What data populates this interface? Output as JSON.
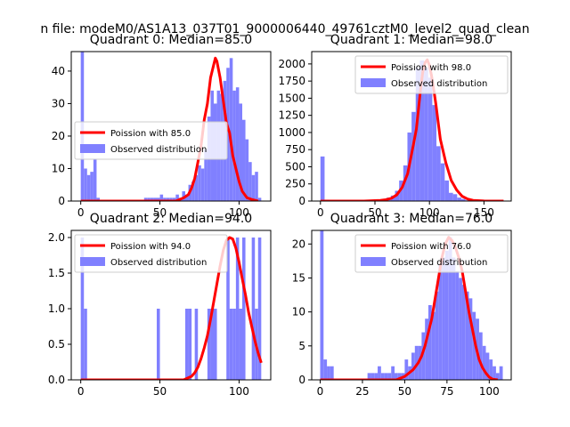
{
  "figure": {
    "suptitle": "n file: modeM0/AS1A13_037T01_9000006440_49761cztM0_level2_quad_clean"
  },
  "colors": {
    "hist": "#8080ff",
    "poisson": "#ff0000",
    "axes": "#000000",
    "background": "#ffffff"
  },
  "chart_data": [
    {
      "type": "bar",
      "title": "Quadrant 0: Median=85.0",
      "xlim": [
        -6,
        120
      ],
      "ylim": [
        0,
        46
      ],
      "xticks": [
        0,
        50,
        100
      ],
      "yticks": [
        0,
        10,
        20,
        30,
        40
      ],
      "legend_position": "center-left",
      "bin_width": 2,
      "bins_x": [
        0,
        2,
        4,
        6,
        8,
        10,
        12,
        14,
        16,
        18,
        20,
        22,
        24,
        26,
        28,
        30,
        32,
        34,
        36,
        38,
        40,
        42,
        44,
        46,
        48,
        50,
        52,
        54,
        56,
        58,
        60,
        62,
        64,
        66,
        68,
        70,
        72,
        74,
        76,
        78,
        80,
        82,
        84,
        86,
        88,
        90,
        92,
        94,
        96,
        98,
        100,
        102,
        104,
        106,
        108,
        110,
        112
      ],
      "hist_values": [
        46,
        10,
        8,
        9,
        13,
        1,
        0,
        0,
        0,
        0,
        0,
        0,
        0,
        0,
        0,
        0,
        0,
        0,
        0,
        0,
        1,
        1,
        1,
        1,
        1,
        2,
        1,
        1,
        1,
        1,
        2,
        1,
        3,
        2,
        5,
        6,
        8,
        11,
        10,
        16,
        26,
        34,
        30,
        34,
        33,
        37,
        41,
        44,
        34,
        35,
        30,
        25,
        19,
        12,
        8,
        9,
        1
      ],
      "series": [
        {
          "name": "Poission with 85.0",
          "type": "line",
          "x": [
            0,
            5,
            10,
            15,
            20,
            25,
            30,
            35,
            40,
            45,
            50,
            55,
            60,
            65,
            68,
            70,
            72,
            74,
            76,
            78,
            80,
            82,
            84,
            85,
            86,
            88,
            90,
            92,
            94,
            96,
            98,
            100,
            102,
            105,
            108,
            112
          ],
          "y": [
            0,
            0,
            0,
            0,
            0,
            0,
            0,
            0,
            0,
            0,
            0,
            0,
            0,
            1,
            2,
            4,
            7,
            12,
            17,
            25,
            30,
            38,
            42,
            44,
            43,
            38,
            31,
            24,
            21,
            14,
            10,
            6,
            3,
            1,
            0.5,
            0
          ]
        },
        {
          "name": "Observed distribution",
          "type": "hist"
        }
      ]
    },
    {
      "type": "bar",
      "title": "Quadrant 1: Median=98.0",
      "xlim": [
        -8,
        175
      ],
      "ylim": [
        0,
        2180
      ],
      "xticks": [
        0,
        50,
        100,
        150
      ],
      "yticks": [
        0,
        250,
        500,
        750,
        1000,
        1250,
        1500,
        1750,
        2000
      ],
      "legend_position": "upper-right",
      "bin_width": 3.8,
      "bins_x": [
        0,
        3.8,
        7.6,
        11.4,
        15.2,
        19,
        22.8,
        26.6,
        30.4,
        34.2,
        38,
        41.8,
        45.6,
        49.4,
        53.2,
        57,
        60.8,
        64.6,
        68.4,
        72.2,
        76,
        79.8,
        83.6,
        87.4,
        91.2,
        95,
        98.8,
        102.6,
        106.4,
        110.2,
        114,
        117.8,
        121.6,
        125.4,
        129.2,
        133,
        136.8,
        140.6,
        144.4,
        148.2,
        152,
        155.8,
        159.6,
        163.4
      ],
      "hist_values": [
        650,
        20,
        15,
        10,
        5,
        5,
        5,
        5,
        5,
        5,
        5,
        5,
        8,
        10,
        20,
        30,
        50,
        80,
        150,
        300,
        520,
        1000,
        1300,
        1950,
        2050,
        1950,
        1800,
        1400,
        800,
        550,
        300,
        120,
        100,
        50,
        30,
        10,
        5,
        2,
        1,
        1,
        1,
        1,
        1,
        1
      ],
      "series": [
        {
          "name": "Poission with 98.0",
          "type": "line",
          "x": [
            0,
            20,
            40,
            55,
            60,
            65,
            70,
            75,
            80,
            85,
            88,
            90,
            92,
            94,
            96,
            98,
            100,
            102,
            104,
            106,
            108,
            110,
            115,
            120,
            125,
            130,
            135,
            140,
            150,
            160,
            168
          ],
          "y": [
            0,
            0,
            0,
            10,
            20,
            40,
            90,
            200,
            400,
            800,
            1050,
            1350,
            1650,
            1900,
            2020,
            2060,
            1980,
            1820,
            1620,
            1400,
            1150,
            900,
            560,
            300,
            160,
            70,
            30,
            10,
            2,
            0,
            0
          ]
        },
        {
          "name": "Observed distribution",
          "type": "hist"
        }
      ]
    },
    {
      "type": "bar",
      "title": "Quadrant 2: Median=94.0",
      "xlim": [
        -6,
        120
      ],
      "ylim": [
        0,
        2.1
      ],
      "xticks": [
        0,
        50,
        100
      ],
      "yticks": [
        0.0,
        0.5,
        1.0,
        1.5,
        2.0
      ],
      "legend_position": "upper-left",
      "bin_width": 2,
      "bins_x": [
        0,
        2,
        48,
        66,
        68,
        70,
        72,
        74,
        76,
        78,
        80,
        82,
        84,
        86,
        88,
        90,
        92,
        94,
        96,
        98,
        100,
        102,
        104,
        106,
        108,
        110,
        112
      ],
      "hist_values": [
        2,
        1,
        1,
        1,
        1,
        0,
        1,
        0,
        0,
        0,
        1,
        1,
        1,
        0,
        0,
        0,
        2,
        1,
        1,
        2,
        1,
        2,
        0,
        0,
        2,
        1,
        2
      ],
      "series": [
        {
          "name": "Poission with 94.0",
          "type": "line",
          "x": [
            0,
            20,
            40,
            60,
            65,
            70,
            72,
            74,
            76,
            78,
            80,
            82,
            84,
            86,
            88,
            90,
            92,
            94,
            96,
            98,
            100,
            102,
            104,
            106,
            108,
            110,
            112,
            114
          ],
          "y": [
            0,
            0,
            0,
            0,
            0,
            0.05,
            0.1,
            0.18,
            0.3,
            0.45,
            0.62,
            0.85,
            1.1,
            1.35,
            1.6,
            1.82,
            1.96,
            2.0,
            1.98,
            1.85,
            1.65,
            1.42,
            1.2,
            0.95,
            0.75,
            0.55,
            0.38,
            0.24
          ]
        },
        {
          "name": "Observed distribution",
          "type": "hist"
        }
      ]
    },
    {
      "type": "bar",
      "title": "Quadrant 3: Median=76.0",
      "xlim": [
        -5,
        113
      ],
      "ylim": [
        0,
        22
      ],
      "xticks": [
        0,
        25,
        50,
        75,
        100
      ],
      "yticks": [
        0,
        5,
        10,
        15,
        20
      ],
      "legend_position": "upper-right",
      "bin_width": 2,
      "bins_x": [
        0,
        2,
        4,
        6,
        28,
        30,
        32,
        34,
        36,
        38,
        40,
        42,
        44,
        46,
        48,
        50,
        52,
        54,
        56,
        58,
        60,
        62,
        64,
        66,
        68,
        70,
        72,
        74,
        76,
        78,
        80,
        82,
        84,
        86,
        88,
        90,
        92,
        94,
        96,
        98,
        100,
        102,
        104,
        106
      ],
      "hist_values": [
        22,
        3,
        2,
        2,
        1,
        1,
        1,
        2,
        1,
        1,
        1,
        2,
        1,
        1,
        1,
        3,
        2,
        4,
        5,
        5,
        7,
        9,
        11,
        10,
        13,
        17,
        18,
        19,
        21,
        18,
        16,
        15,
        14,
        13,
        12,
        10,
        9,
        7,
        5,
        4,
        3,
        2,
        1,
        2
      ],
      "series": [
        {
          "name": "Poission with 76.0",
          "type": "line",
          "x": [
            0,
            20,
            40,
            45,
            50,
            55,
            58,
            60,
            62,
            64,
            66,
            68,
            70,
            72,
            74,
            76,
            78,
            80,
            82,
            84,
            86,
            88,
            90,
            92,
            94,
            96,
            98,
            100,
            102,
            105
          ],
          "y": [
            0,
            0,
            0,
            0,
            0.5,
            1.5,
            2.5,
            3.5,
            5,
            7,
            9,
            12,
            15,
            18,
            20,
            21,
            20.5,
            19.5,
            18,
            16,
            13,
            10,
            7.5,
            5,
            3,
            1.8,
            1,
            0.4,
            0.1,
            0
          ]
        },
        {
          "name": "Observed distribution",
          "type": "hist"
        }
      ]
    }
  ]
}
